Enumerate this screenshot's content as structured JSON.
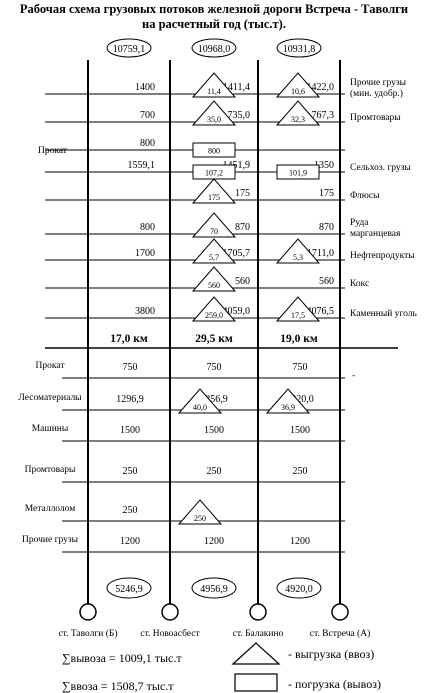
{
  "title_line1": "Рабочая схема грузовых потоков железной дороги Встреча - Таволги",
  "title_line2": "на расчетный год (тыс.т).",
  "top_totals": [
    "10759,1",
    "10968,0",
    "10931,8"
  ],
  "bottom_totals": [
    "5246,9",
    "4956,9",
    "4920,0"
  ],
  "distances": [
    "17,0 км",
    "29,5 км",
    "19,0 км"
  ],
  "stations": [
    "ст. Таволги (Б)",
    "ст. Новоасбест",
    "ст. Балакино",
    "ст. Встреча (А)"
  ],
  "upper_rows": [
    {
      "label": "Прочие грузы (мин. удобр.)",
      "left_label": "",
      "v1": "1400",
      "v2": "1411,4",
      "v3": "1422,0",
      "m1": {
        "type": "tri",
        "value": "11,4"
      },
      "m2": {
        "type": "tri",
        "value": "10,6"
      }
    },
    {
      "label": "Промтовары",
      "left_label": "",
      "v1": "700",
      "v2": "735,0",
      "v3": "767,3",
      "m1": {
        "type": "tri",
        "value": "35,0"
      },
      "m2": {
        "type": "tri",
        "value": "32,3"
      }
    },
    {
      "label": "",
      "left_label": "Прокат",
      "v1": "800",
      "v2": "",
      "v3": "",
      "m1": {
        "type": "box",
        "value": "800"
      },
      "m2": null
    },
    {
      "label": "Сельхоз. грузы",
      "left_label": "",
      "v1": "1559,1",
      "v2": "1451,9",
      "v3": "1350",
      "m1": {
        "type": "box",
        "value": "107,2"
      },
      "m2": {
        "type": "box",
        "value": "101,9"
      }
    },
    {
      "label": "Флюсы",
      "left_label": "",
      "v1": "",
      "v2": "175",
      "v3": "175",
      "m1": {
        "type": "tri",
        "value": "175"
      },
      "m2": null
    },
    {
      "label": "Руда марганцевая",
      "left_label": "",
      "v1": "800",
      "v2": "870",
      "v3": "870",
      "m1": {
        "type": "tri",
        "value": "70"
      },
      "m2": null
    },
    {
      "label": "Нефтепродукты",
      "left_label": "",
      "v1": "1700",
      "v2": "1705,7",
      "v3": "1711,0",
      "m1": {
        "type": "tri",
        "value": "5,7"
      },
      "m2": {
        "type": "tri",
        "value": "5,3"
      }
    },
    {
      "label": "Кокс",
      "left_label": "",
      "v1": "",
      "v2": "560",
      "v3": "560",
      "m1": {
        "type": "tri",
        "value": "560"
      },
      "m2": null
    },
    {
      "label": "Каменный уголь",
      "left_label": "",
      "v1": "3800",
      "v2": "4059,0",
      "v3": "4076,5",
      "m1": {
        "type": "tri",
        "value": "259,0"
      },
      "m2": {
        "type": "tri",
        "value": "17,5"
      }
    }
  ],
  "lower_rows": [
    {
      "label": "Прокат",
      "v1": "750",
      "v2": "750",
      "v3": "750",
      "m1": null,
      "m2": null
    },
    {
      "label": "Лесоматериалы",
      "v1": "1296,9",
      "v2": "1256,9",
      "v3": "1220,0",
      "m1": {
        "type": "tri",
        "value": "40,0"
      },
      "m2": {
        "type": "tri",
        "value": "36,9"
      }
    },
    {
      "label": "Машины",
      "v1": "1500",
      "v2": "1500",
      "v3": "1500",
      "m1": null,
      "m2": null
    },
    {
      "label": "Промтовары",
      "v1": "250",
      "v2": "250",
      "v3": "250",
      "m1": null,
      "m2": null
    },
    {
      "label": "Металлолом",
      "v1": "250",
      "v2": "",
      "v3": "",
      "m1": {
        "type": "tri",
        "value": "250"
      },
      "m2": null
    },
    {
      "label": "Прочие грузы",
      "v1": "1200",
      "v2": "1200",
      "v3": "1200",
      "m1": null,
      "m2": null
    }
  ],
  "dash": "-",
  "legend": {
    "sum_export": "∑вывоза = 1009,1 тыс.т",
    "sum_import": "∑ввоза = 1508,7 тыс.т",
    "tri_text": "- выгрузка (ввоз)",
    "box_text": "- погрузка (вывоз)"
  }
}
